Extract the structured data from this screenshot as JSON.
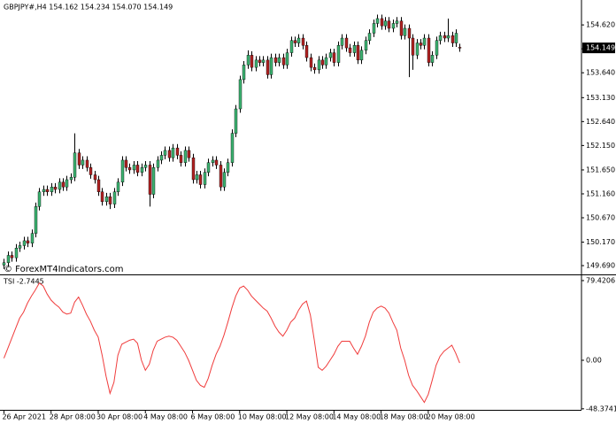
{
  "chart_data": [
    {
      "type": "candlestick",
      "title": "GBPJPY#,H4  154.162 154.234 154.070 154.149",
      "watermark": "© ForexMT4Indicators.com",
      "colors": {
        "up": "#3cb371",
        "down": "#b22222"
      },
      "current_price": {
        "value": 154.149,
        "label": "154.149"
      },
      "xlim": [
        -1,
        147
      ],
      "xticks": [
        {
          "value": 0,
          "label": "26 Apr 2021"
        },
        {
          "value": 12,
          "label": "28 Apr 08:00"
        },
        {
          "value": 24,
          "label": "30 Apr 08:00"
        },
        {
          "value": 36,
          "label": "4 May 08:00"
        },
        {
          "value": 48,
          "label": "6 May 08:00"
        },
        {
          "value": 60,
          "label": "10 May 08:00"
        },
        {
          "value": 72,
          "label": "12 May 08:00"
        },
        {
          "value": 84,
          "label": "14 May 08:00"
        },
        {
          "value": 96,
          "label": "18 May 08:00"
        },
        {
          "value": 108,
          "label": "20 May 08:00"
        }
      ],
      "ylim": [
        149.51,
        155.13
      ],
      "yticks": [
        {
          "value": 154.62,
          "label": "154.620"
        },
        {
          "value": 154.13,
          "label": "154.130"
        },
        {
          "value": 153.64,
          "label": "153.640"
        },
        {
          "value": 153.13,
          "label": "153.130"
        },
        {
          "value": 152.64,
          "label": "152.640"
        },
        {
          "value": 152.15,
          "label": "152.150"
        },
        {
          "value": 151.65,
          "label": "151.650"
        },
        {
          "value": 151.16,
          "label": "151.160"
        },
        {
          "value": 150.67,
          "label": "150.670"
        },
        {
          "value": 150.17,
          "label": "150.170"
        },
        {
          "value": 149.69,
          "label": "149.690"
        }
      ],
      "open": [
        149.7,
        149.75,
        149.9,
        149.85,
        150.05,
        150.1,
        150.2,
        150.15,
        150.35,
        150.9,
        151.2,
        151.25,
        151.2,
        151.3,
        151.25,
        151.4,
        151.3,
        151.45,
        151.5,
        152.0,
        151.75,
        151.85,
        151.7,
        151.55,
        151.45,
        151.2,
        151.0,
        151.1,
        150.95,
        151.2,
        151.4,
        151.85,
        151.7,
        151.65,
        151.75,
        151.6,
        151.7,
        151.75,
        151.15,
        151.7,
        151.85,
        151.95,
        152.05,
        151.9,
        152.1,
        151.95,
        151.8,
        152.05,
        151.9,
        151.45,
        151.55,
        151.35,
        151.6,
        151.8,
        151.85,
        151.75,
        151.3,
        151.6,
        151.8,
        152.4,
        152.9,
        153.5,
        153.8,
        154.0,
        153.75,
        153.9,
        153.85,
        153.9,
        153.6,
        153.95,
        153.85,
        153.95,
        153.8,
        154.05,
        154.3,
        154.25,
        154.35,
        154.2,
        153.95,
        153.75,
        153.7,
        153.9,
        153.8,
        153.95,
        154.05,
        153.85,
        154.2,
        154.35,
        154.15,
        154.05,
        154.2,
        153.9,
        154.1,
        154.3,
        154.45,
        154.65,
        154.75,
        154.6,
        154.7,
        154.55,
        154.65,
        154.7,
        154.4,
        154.55,
        154.35,
        154.0,
        154.25,
        154.2,
        154.35,
        153.85,
        154.0,
        154.3,
        154.4,
        154.35,
        154.4,
        154.25,
        154.162
      ],
      "high": [
        149.83,
        149.98,
        149.98,
        150.13,
        150.18,
        150.28,
        150.28,
        150.43,
        150.98,
        151.28,
        151.33,
        151.33,
        151.38,
        151.38,
        151.48,
        151.48,
        151.53,
        151.58,
        152.4,
        152.08,
        151.93,
        151.93,
        151.78,
        151.63,
        151.53,
        151.28,
        151.18,
        151.18,
        151.28,
        151.48,
        151.93,
        151.93,
        151.78,
        151.83,
        151.83,
        151.78,
        151.83,
        151.83,
        151.78,
        151.93,
        152.03,
        152.13,
        152.13,
        152.18,
        152.18,
        152.03,
        152.13,
        152.13,
        151.98,
        151.63,
        151.63,
        151.68,
        151.88,
        151.93,
        151.93,
        151.83,
        151.68,
        151.88,
        152.48,
        152.98,
        153.58,
        153.88,
        154.1,
        154.08,
        153.98,
        153.98,
        153.98,
        153.98,
        154.03,
        154.03,
        154.03,
        154.03,
        154.13,
        154.38,
        154.38,
        154.43,
        154.43,
        154.28,
        154.03,
        153.83,
        153.98,
        153.98,
        154.03,
        154.13,
        154.13,
        154.28,
        154.43,
        154.43,
        154.23,
        154.28,
        154.28,
        154.18,
        154.38,
        154.53,
        154.73,
        154.83,
        154.83,
        154.78,
        154.78,
        154.73,
        154.78,
        154.78,
        154.63,
        154.63,
        154.43,
        154.33,
        154.33,
        154.43,
        154.43,
        154.08,
        154.38,
        154.48,
        154.48,
        154.75,
        154.48,
        154.53,
        154.234
      ],
      "low": [
        149.62,
        149.67,
        149.77,
        149.77,
        149.97,
        150.02,
        150.07,
        150.07,
        150.27,
        150.82,
        151.12,
        151.12,
        151.12,
        151.17,
        151.17,
        151.22,
        151.22,
        151.37,
        151.42,
        151.67,
        151.67,
        151.62,
        151.47,
        151.37,
        151.12,
        150.92,
        150.92,
        150.85,
        150.87,
        151.12,
        151.32,
        151.62,
        151.57,
        151.57,
        151.52,
        151.52,
        151.62,
        150.9,
        151.07,
        151.62,
        151.77,
        151.87,
        151.82,
        151.82,
        151.87,
        151.72,
        151.72,
        151.82,
        151.37,
        151.37,
        151.27,
        151.27,
        151.52,
        151.72,
        151.67,
        151.22,
        151.22,
        151.52,
        151.72,
        152.32,
        152.82,
        153.42,
        153.72,
        153.67,
        153.67,
        153.77,
        153.77,
        153.52,
        153.52,
        153.77,
        153.77,
        153.72,
        153.72,
        153.97,
        154.17,
        154.17,
        154.12,
        153.87,
        153.67,
        153.62,
        153.62,
        153.72,
        153.72,
        153.87,
        153.77,
        153.77,
        154.12,
        154.07,
        153.97,
        153.97,
        153.82,
        153.82,
        154.02,
        154.22,
        154.37,
        154.57,
        154.52,
        154.52,
        154.47,
        154.47,
        154.57,
        154.32,
        154.32,
        153.55,
        153.7,
        153.92,
        154.12,
        154.12,
        153.77,
        153.77,
        153.92,
        154.22,
        154.27,
        154.27,
        154.17,
        154.17,
        154.07
      ],
      "close": [
        149.75,
        149.9,
        149.85,
        150.05,
        150.1,
        150.2,
        150.15,
        150.35,
        150.9,
        151.2,
        151.25,
        151.2,
        151.3,
        151.25,
        151.4,
        151.3,
        151.45,
        151.5,
        152.0,
        151.75,
        151.85,
        151.7,
        151.55,
        151.45,
        151.2,
        151.0,
        151.1,
        150.95,
        151.2,
        151.4,
        151.85,
        151.7,
        151.65,
        151.75,
        151.6,
        151.7,
        151.75,
        151.15,
        151.7,
        151.85,
        151.95,
        152.05,
        151.9,
        152.1,
        151.95,
        151.8,
        152.05,
        151.9,
        151.45,
        151.55,
        151.35,
        151.6,
        151.8,
        151.85,
        151.75,
        151.3,
        151.6,
        151.8,
        152.4,
        152.9,
        153.5,
        153.8,
        154.0,
        153.75,
        153.9,
        153.85,
        153.9,
        153.6,
        153.95,
        153.85,
        153.95,
        153.8,
        154.05,
        154.3,
        154.25,
        154.35,
        154.2,
        153.95,
        153.75,
        153.7,
        153.9,
        153.8,
        153.95,
        154.05,
        153.85,
        154.2,
        154.35,
        154.15,
        154.05,
        154.2,
        153.9,
        154.1,
        154.3,
        154.45,
        154.65,
        154.75,
        154.6,
        154.7,
        154.55,
        154.65,
        154.7,
        154.4,
        154.55,
        154.35,
        154.0,
        154.25,
        154.2,
        154.35,
        153.85,
        154.0,
        154.3,
        154.4,
        154.35,
        154.4,
        154.25,
        154.45,
        154.149
      ]
    },
    {
      "type": "line",
      "xlim": [
        -1,
        147
      ],
      "ylim": [
        -49.4,
        84.7
      ],
      "yticks": [
        79.4206,
        {
          "value": 0,
          "label": "0.00"
        },
        -48.3741
      ],
      "series": [
        {
          "name": "TSI -2.7445",
          "color": "#f03c3c",
          "values": [
            2,
            12,
            22,
            32,
            42,
            48,
            57,
            64,
            70,
            77,
            74,
            66,
            60,
            56,
            53,
            48,
            46,
            47,
            58,
            63,
            55,
            46,
            39,
            30,
            23,
            5,
            -16,
            -33,
            -22,
            5,
            16,
            18,
            20,
            21,
            17,
            0,
            -10,
            -4,
            10,
            19,
            21,
            23,
            24,
            23,
            20,
            14,
            8,
            0,
            -10,
            -20,
            -25,
            -27,
            -18,
            -5,
            6,
            14,
            25,
            38,
            52,
            64,
            72,
            74,
            70,
            64,
            60,
            56,
            52,
            49,
            42,
            34,
            28,
            24,
            30,
            38,
            42,
            50,
            56,
            59,
            45,
            20,
            -7,
            -10,
            -6,
            0,
            6,
            14,
            19,
            19,
            19,
            12,
            6,
            14,
            24,
            38,
            48,
            52,
            54,
            52,
            47,
            38,
            30,
            12,
            0,
            -15,
            -25,
            -30,
            -36,
            -42,
            -34,
            -20,
            -5,
            4,
            9,
            12,
            15,
            7,
            -2.7445
          ]
        }
      ]
    }
  ]
}
